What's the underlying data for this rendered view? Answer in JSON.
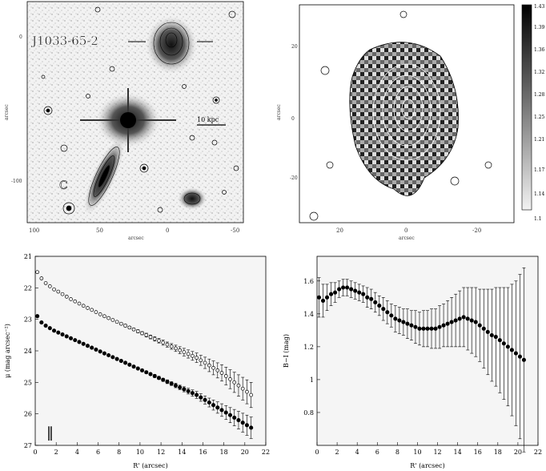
{
  "panel_a": {
    "object_label": "J1033-65-2",
    "ticks_x": [
      "100",
      "50",
      "0",
      "-50"
    ],
    "ticks_y": [
      "0",
      "-100"
    ],
    "axis_x": "arcsec",
    "axis_y": "arcsec",
    "scale_bar": "10 kpc"
  },
  "panel_b": {
    "ticks_x": [
      "20",
      "0",
      "-20"
    ],
    "ticks_y": [
      "20",
      "0",
      "-20"
    ],
    "axis_x": "arcsec",
    "axis_y": "arcsec",
    "colorbar_ticks": [
      "1.43",
      "1.39",
      "1.36",
      "1.32",
      "1.28",
      "1.25",
      "1.21",
      "1.17",
      "1.14",
      "1.1"
    ]
  },
  "chart_data": [
    {
      "type": "scatter",
      "xlabel": "R' (arcsec)",
      "ylabel": "μ (mag arcsec⁻²)",
      "xlim": [
        0,
        22
      ],
      "ylim": [
        27,
        21
      ],
      "x_ticks": [
        "0",
        "2",
        "4",
        "6",
        "8",
        "10",
        "12",
        "14",
        "16",
        "18",
        "20",
        "22"
      ],
      "y_ticks": [
        "21",
        "22",
        "23",
        "24",
        "25",
        "26",
        "27"
      ],
      "series": [
        {
          "marker": "open",
          "x": [
            0.2,
            0.6,
            1.0,
            1.4,
            1.8,
            2.2,
            2.6,
            3.0,
            3.4,
            3.8,
            4.2,
            4.6,
            5.0,
            5.4,
            5.8,
            6.2,
            6.6,
            7.0,
            7.4,
            7.8,
            8.2,
            8.6,
            9.0,
            9.4,
            9.8,
            10.2,
            10.6,
            11.0,
            11.4,
            11.8,
            12.2,
            12.6,
            13.0,
            13.4,
            13.8,
            14.2,
            14.6,
            15.0,
            15.4,
            15.8,
            16.2,
            16.6,
            17.0,
            17.4,
            17.8,
            18.2,
            18.6,
            19.0,
            19.4,
            19.8,
            20.2,
            20.6
          ],
          "y": [
            21.5,
            21.7,
            21.85,
            21.95,
            22.05,
            22.12,
            22.2,
            22.28,
            22.36,
            22.43,
            22.5,
            22.57,
            22.64,
            22.7,
            22.77,
            22.84,
            22.9,
            22.96,
            23.02,
            23.08,
            23.14,
            23.2,
            23.26,
            23.32,
            23.38,
            23.44,
            23.5,
            23.56,
            23.62,
            23.68,
            23.74,
            23.8,
            23.86,
            23.92,
            23.98,
            24.04,
            24.1,
            24.16,
            24.22,
            24.3,
            24.38,
            24.46,
            24.54,
            24.62,
            24.7,
            24.8,
            24.9,
            25.0,
            25.1,
            25.2,
            25.3,
            25.4
          ],
          "err": [
            0.02,
            0.02,
            0.02,
            0.02,
            0.02,
            0.02,
            0.02,
            0.02,
            0.02,
            0.02,
            0.02,
            0.02,
            0.02,
            0.02,
            0.02,
            0.02,
            0.03,
            0.03,
            0.03,
            0.03,
            0.03,
            0.04,
            0.04,
            0.04,
            0.05,
            0.05,
            0.06,
            0.06,
            0.07,
            0.07,
            0.08,
            0.08,
            0.09,
            0.1,
            0.11,
            0.12,
            0.13,
            0.14,
            0.15,
            0.16,
            0.18,
            0.2,
            0.22,
            0.24,
            0.26,
            0.28,
            0.3,
            0.32,
            0.34,
            0.36,
            0.38,
            0.4
          ]
        },
        {
          "marker": "filled",
          "x": [
            0.2,
            0.6,
            1.0,
            1.4,
            1.8,
            2.2,
            2.6,
            3.0,
            3.4,
            3.8,
            4.2,
            4.6,
            5.0,
            5.4,
            5.8,
            6.2,
            6.6,
            7.0,
            7.4,
            7.8,
            8.2,
            8.6,
            9.0,
            9.4,
            9.8,
            10.2,
            10.6,
            11.0,
            11.4,
            11.8,
            12.2,
            12.6,
            13.0,
            13.4,
            13.8,
            14.2,
            14.6,
            15.0,
            15.4,
            15.8,
            16.2,
            16.6,
            17.0,
            17.4,
            17.8,
            18.2,
            18.6,
            19.0,
            19.4,
            19.8,
            20.2,
            20.6
          ],
          "y": [
            22.9,
            23.1,
            23.2,
            23.28,
            23.36,
            23.42,
            23.48,
            23.54,
            23.6,
            23.66,
            23.72,
            23.78,
            23.84,
            23.9,
            23.96,
            24.02,
            24.08,
            24.14,
            24.2,
            24.26,
            24.32,
            24.38,
            24.44,
            24.5,
            24.56,
            24.62,
            24.68,
            24.74,
            24.8,
            24.86,
            24.92,
            24.98,
            25.04,
            25.1,
            25.16,
            25.22,
            25.28,
            25.34,
            25.4,
            25.48,
            25.56,
            25.64,
            25.72,
            25.8,
            25.88,
            25.96,
            26.04,
            26.12,
            26.2,
            26.28,
            26.36,
            26.44
          ],
          "err": [
            0.02,
            0.02,
            0.02,
            0.02,
            0.02,
            0.02,
            0.02,
            0.02,
            0.02,
            0.02,
            0.02,
            0.02,
            0.02,
            0.02,
            0.02,
            0.02,
            0.02,
            0.02,
            0.02,
            0.02,
            0.03,
            0.03,
            0.03,
            0.03,
            0.03,
            0.04,
            0.04,
            0.04,
            0.05,
            0.05,
            0.05,
            0.06,
            0.06,
            0.07,
            0.07,
            0.08,
            0.09,
            0.1,
            0.11,
            0.12,
            0.13,
            0.14,
            0.16,
            0.18,
            0.2,
            0.22,
            0.24,
            0.26,
            0.28,
            0.3,
            0.32,
            0.34
          ]
        }
      ],
      "error_bar_note": "‖"
    },
    {
      "type": "scatter",
      "xlabel": "R' (arcsec)",
      "ylabel": "B−I (mag)",
      "xlim": [
        0,
        22
      ],
      "ylim": [
        0.6,
        1.75
      ],
      "x_ticks": [
        "0",
        "2",
        "4",
        "6",
        "8",
        "10",
        "12",
        "14",
        "16",
        "18",
        "20",
        "22"
      ],
      "y_ticks": [
        "0.8",
        "1",
        "1.2",
        "1.4",
        "1.6"
      ],
      "series": [
        {
          "marker": "filled",
          "x": [
            0.2,
            0.6,
            1.0,
            1.4,
            1.8,
            2.2,
            2.6,
            3.0,
            3.4,
            3.8,
            4.2,
            4.6,
            5.0,
            5.4,
            5.8,
            6.2,
            6.6,
            7.0,
            7.4,
            7.8,
            8.2,
            8.6,
            9.0,
            9.4,
            9.8,
            10.2,
            10.6,
            11.0,
            11.4,
            11.8,
            12.2,
            12.6,
            13.0,
            13.4,
            13.8,
            14.2,
            14.6,
            15.0,
            15.4,
            15.8,
            16.2,
            16.6,
            17.0,
            17.4,
            17.8,
            18.2,
            18.6,
            19.0,
            19.4,
            19.8,
            20.2,
            20.6
          ],
          "y": [
            1.5,
            1.48,
            1.5,
            1.52,
            1.53,
            1.55,
            1.56,
            1.56,
            1.55,
            1.54,
            1.53,
            1.52,
            1.5,
            1.49,
            1.47,
            1.45,
            1.43,
            1.41,
            1.39,
            1.37,
            1.36,
            1.35,
            1.34,
            1.33,
            1.32,
            1.31,
            1.31,
            1.31,
            1.31,
            1.31,
            1.32,
            1.33,
            1.34,
            1.35,
            1.36,
            1.37,
            1.38,
            1.37,
            1.36,
            1.35,
            1.33,
            1.31,
            1.29,
            1.27,
            1.26,
            1.24,
            1.22,
            1.2,
            1.18,
            1.16,
            1.14,
            1.12
          ],
          "err": [
            0.12,
            0.1,
            0.08,
            0.07,
            0.06,
            0.05,
            0.05,
            0.05,
            0.05,
            0.05,
            0.05,
            0.05,
            0.06,
            0.06,
            0.06,
            0.06,
            0.07,
            0.07,
            0.07,
            0.08,
            0.08,
            0.08,
            0.09,
            0.09,
            0.1,
            0.1,
            0.11,
            0.11,
            0.12,
            0.12,
            0.13,
            0.13,
            0.14,
            0.15,
            0.16,
            0.17,
            0.18,
            0.19,
            0.2,
            0.21,
            0.22,
            0.24,
            0.26,
            0.28,
            0.3,
            0.32,
            0.34,
            0.36,
            0.4,
            0.44,
            0.5,
            0.56
          ]
        }
      ]
    }
  ]
}
